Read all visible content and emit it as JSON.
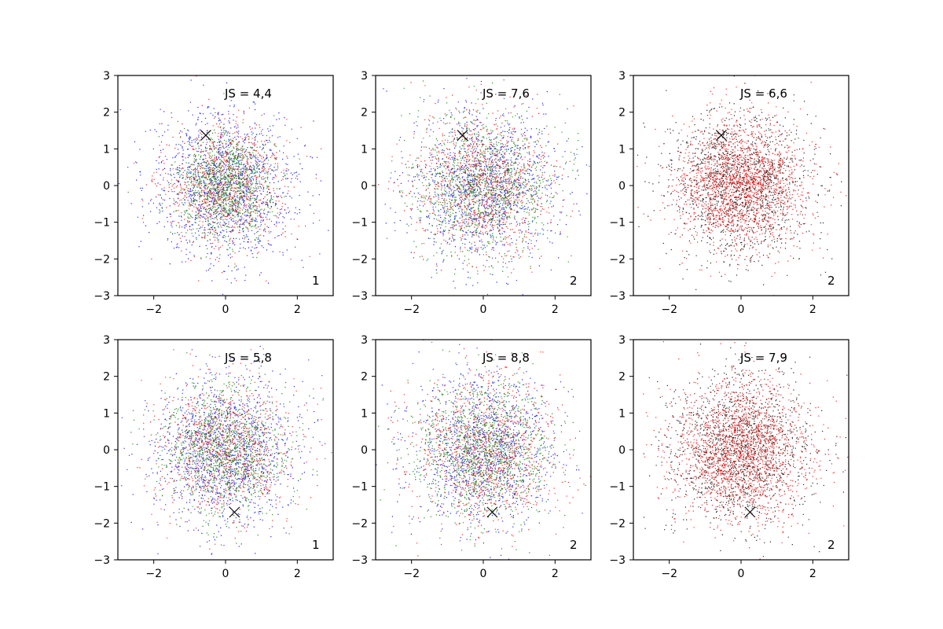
{
  "chart_data": [
    {
      "type": "scatter",
      "js_label": "JS = 4,4",
      "corner_label": "1",
      "xlim": [
        -3,
        3
      ],
      "ylim": [
        -3,
        3
      ],
      "xticks": [
        -2,
        0,
        2
      ],
      "yticks": [
        -3,
        -2,
        -1,
        0,
        1,
        2,
        3
      ],
      "marker": {
        "x": -0.55,
        "y": 1.37
      },
      "series": [
        {
          "color": "#0000ff",
          "sigma": 1.0,
          "count": 1300
        },
        {
          "color": "#ff0000",
          "sigma": 0.85,
          "count": 1000
        },
        {
          "color": "#008000",
          "sigma": 0.7,
          "count": 1100
        }
      ]
    },
    {
      "type": "scatter",
      "js_label": "JS = 7,6",
      "corner_label": "2",
      "xlim": [
        -3,
        3
      ],
      "ylim": [
        -3,
        3
      ],
      "xticks": [
        -2,
        0,
        2
      ],
      "yticks": [
        -3,
        -2,
        -1,
        0,
        1,
        2,
        3
      ],
      "marker": {
        "x": -0.58,
        "y": 1.37
      },
      "series": [
        {
          "color": "#0000ff",
          "sigma": 1.0,
          "count": 1200
        },
        {
          "color": "#ff0000",
          "sigma": 0.95,
          "count": 1100
        },
        {
          "color": "#008000",
          "sigma": 1.0,
          "count": 1200
        }
      ]
    },
    {
      "type": "scatter",
      "js_label": "JS = 6,6",
      "corner_label": "2",
      "xlim": [
        -3,
        3
      ],
      "ylim": [
        -3,
        3
      ],
      "xticks": [
        -2,
        0,
        2
      ],
      "yticks": [
        -3,
        -2,
        -1,
        0,
        1,
        2,
        3
      ],
      "marker": {
        "x": -0.55,
        "y": 1.37
      },
      "series": [
        {
          "color": "#000000",
          "sigma": 1.0,
          "count": 1500
        },
        {
          "color": "#ff0000",
          "sigma": 0.9,
          "count": 1900
        }
      ]
    },
    {
      "type": "scatter",
      "js_label": "JS = 5,8",
      "corner_label": "1",
      "xlim": [
        -3,
        3
      ],
      "ylim": [
        -3,
        3
      ],
      "xticks": [
        -2,
        0,
        2
      ],
      "yticks": [
        -3,
        -2,
        -1,
        0,
        1,
        2,
        3
      ],
      "marker": {
        "x": 0.25,
        "y": -1.7
      },
      "series": [
        {
          "color": "#0000ff",
          "sigma": 1.0,
          "count": 1300
        },
        {
          "color": "#ff0000",
          "sigma": 0.95,
          "count": 1000
        },
        {
          "color": "#008000",
          "sigma": 0.9,
          "count": 1100
        }
      ]
    },
    {
      "type": "scatter",
      "js_label": "JS = 8,8",
      "corner_label": "2",
      "xlim": [
        -3,
        3
      ],
      "ylim": [
        -3,
        3
      ],
      "xticks": [
        -2,
        0,
        2
      ],
      "yticks": [
        -3,
        -2,
        -1,
        0,
        1,
        2,
        3
      ],
      "marker": {
        "x": 0.25,
        "y": -1.7
      },
      "series": [
        {
          "color": "#0000ff",
          "sigma": 1.0,
          "count": 1200
        },
        {
          "color": "#ff0000",
          "sigma": 1.0,
          "count": 1100
        },
        {
          "color": "#008000",
          "sigma": 0.95,
          "count": 1200
        }
      ]
    },
    {
      "type": "scatter",
      "js_label": "JS = 7,9",
      "corner_label": "2",
      "xlim": [
        -3,
        3
      ],
      "ylim": [
        -3,
        3
      ],
      "xticks": [
        -2,
        0,
        2
      ],
      "yticks": [
        -3,
        -2,
        -1,
        0,
        1,
        2,
        3
      ],
      "marker": {
        "x": 0.25,
        "y": -1.7
      },
      "series": [
        {
          "color": "#000000",
          "sigma": 1.0,
          "count": 1500
        },
        {
          "color": "#ff0000",
          "sigma": 0.95,
          "count": 1900
        }
      ]
    }
  ]
}
